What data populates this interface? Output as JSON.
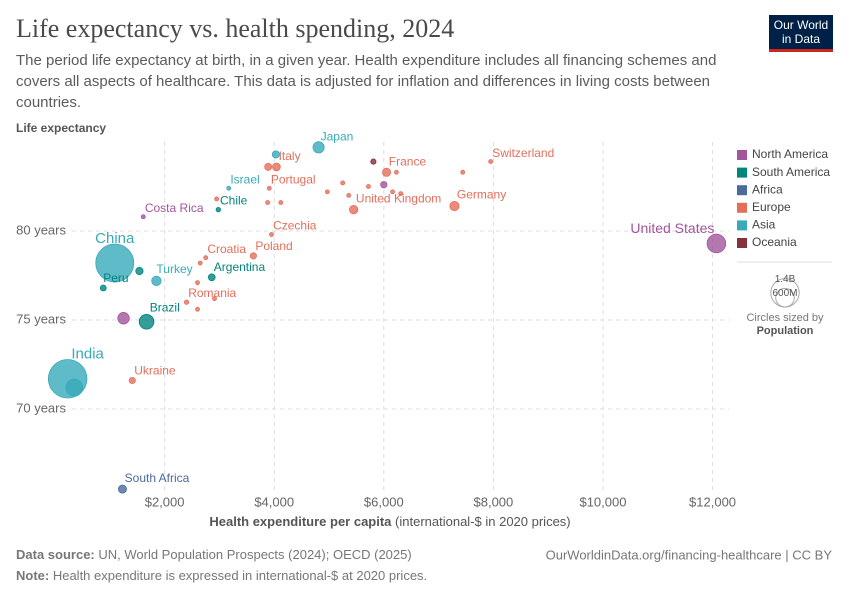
{
  "logo": [
    "Our World",
    "in Data"
  ],
  "footer": {
    "source_label": "Data source:",
    "source": " UN, World Population Prospects (2024); OECD (2025)",
    "url": "OurWorldinData.org/financing-healthcare | CC BY",
    "note_label": "Note:",
    "note": " Health expenditure is expressed in international-$ at 2020 prices."
  },
  "chart_data": {
    "type": "scatter",
    "title": "Life expectancy vs. health spending, 2024",
    "subtitle": "The period life expectancy at birth, in a given year. Health expenditure includes all financing schemes and covers all aspects of healthcare. This data is adjusted for inflation and differences in living costs between countries.",
    "ylabel": "Life expectancy",
    "xlabel": "Health expenditure per capita",
    "xlabel_note": " (international-$ in 2020 prices)",
    "xlim": [
      200,
      12300
    ],
    "ylim": [
      65,
      85
    ],
    "xticks": [
      {
        "value": 2000,
        "label": "$2,000"
      },
      {
        "value": 4000,
        "label": "$4,000"
      },
      {
        "value": 6000,
        "label": "$6,000"
      },
      {
        "value": 8000,
        "label": "$8,000"
      },
      {
        "value": 10000,
        "label": "$10,000"
      },
      {
        "value": 12000,
        "label": "$12,000"
      }
    ],
    "yticks": [
      {
        "value": 70,
        "label": "70 years"
      },
      {
        "value": 75,
        "label": "75 years"
      },
      {
        "value": 80,
        "label": "80 years"
      }
    ],
    "grid": true,
    "legend_position": "right",
    "size_legend": {
      "values": [
        {
          "value": 1400000000,
          "label": "1.4B"
        },
        {
          "value": 600000000,
          "label": "600M"
        }
      ],
      "caption": "Circles sized by",
      "variable": "Population"
    },
    "series": [
      {
        "name": "North America",
        "color": "#a2559c",
        "labels": [
          "United States",
          "Costa Rica",
          null,
          null
        ],
        "x": [
          12070,
          1610,
          1250,
          6000
        ],
        "values": [
          79.3,
          80.8,
          75.1,
          82.6
        ],
        "sizes": [
          340000000,
          5000000,
          130000000,
          40000000
        ]
      },
      {
        "name": "South America",
        "color": "#00847e",
        "labels": [
          "Chile",
          "Argentina",
          "Brazil",
          "Peru",
          null
        ],
        "x": [
          2980,
          2860,
          1670,
          880,
          1540
        ],
        "values": [
          81.2,
          77.4,
          74.9,
          76.8,
          77.75
        ],
        "sizes": [
          20000000,
          46000000,
          212000000,
          34000000,
          52000000
        ]
      },
      {
        "name": "Africa",
        "color": "#4c6a9c",
        "labels": [
          "South Africa"
        ],
        "x": [
          1230
        ],
        "values": [
          65.5
        ],
        "sizes": [
          64000000
        ]
      },
      {
        "name": "Europe",
        "color": "#e56e5a",
        "labels": [
          "Switzerland",
          "Italy",
          null,
          "France",
          "Portugal",
          "United Kingdom",
          "Germany",
          "Czechia",
          "Poland",
          "Croatia",
          "Romania",
          "Ukraine",
          null,
          null,
          null,
          null,
          null,
          null,
          null,
          null,
          null,
          null,
          null,
          null,
          null,
          null,
          null
        ],
        "x": [
          7950,
          4040,
          3890,
          6050,
          3910,
          5450,
          7290,
          3950,
          3620,
          2750,
          2400,
          1410,
          7440,
          6230,
          5250,
          4970,
          5720,
          6160,
          6310,
          5360,
          4120,
          3880,
          2950,
          2650,
          2600,
          2600,
          2910
        ],
        "values": [
          83.9,
          83.6,
          83.6,
          83.3,
          82.4,
          81.2,
          81.4,
          79.8,
          78.6,
          78.5,
          76.0,
          71.6,
          83.3,
          83.3,
          82.7,
          82.2,
          82.5,
          82.2,
          82.1,
          82.0,
          81.6,
          81.6,
          81.8,
          78.2,
          77.1,
          75.6,
          76.2
        ],
        "sizes": [
          9000000,
          59000000,
          48000000,
          66000000,
          10000000,
          69000000,
          84000000,
          11000000,
          38000000,
          4000000,
          19000000,
          38000000,
          5000000,
          6000000,
          5000000,
          10000000,
          11000000,
          5000000,
          9000000,
          9000000,
          5000000,
          5000000,
          2000000,
          10000000,
          7000000,
          7000000,
          2000000
        ]
      },
      {
        "name": "Asia",
        "color": "#38aaba",
        "labels": [
          "China",
          "India",
          "Japan",
          "Israel",
          "Turkey",
          null,
          null
        ],
        "x": [
          1090,
          230,
          4810,
          3170,
          1850,
          350,
          4030
        ],
        "values": [
          78.2,
          71.7,
          84.7,
          82.4,
          77.2,
          71.2,
          84.3
        ],
        "sizes": [
          1410000000,
          1450000000,
          124000000,
          10000000,
          87000000,
          280000000,
          51000000
        ]
      },
      {
        "name": "Oceania",
        "color": "#883039",
        "labels": [
          null
        ],
        "x": [
          5810
        ],
        "values": [
          83.9
        ],
        "sizes": [
          27000000
        ]
      }
    ]
  }
}
